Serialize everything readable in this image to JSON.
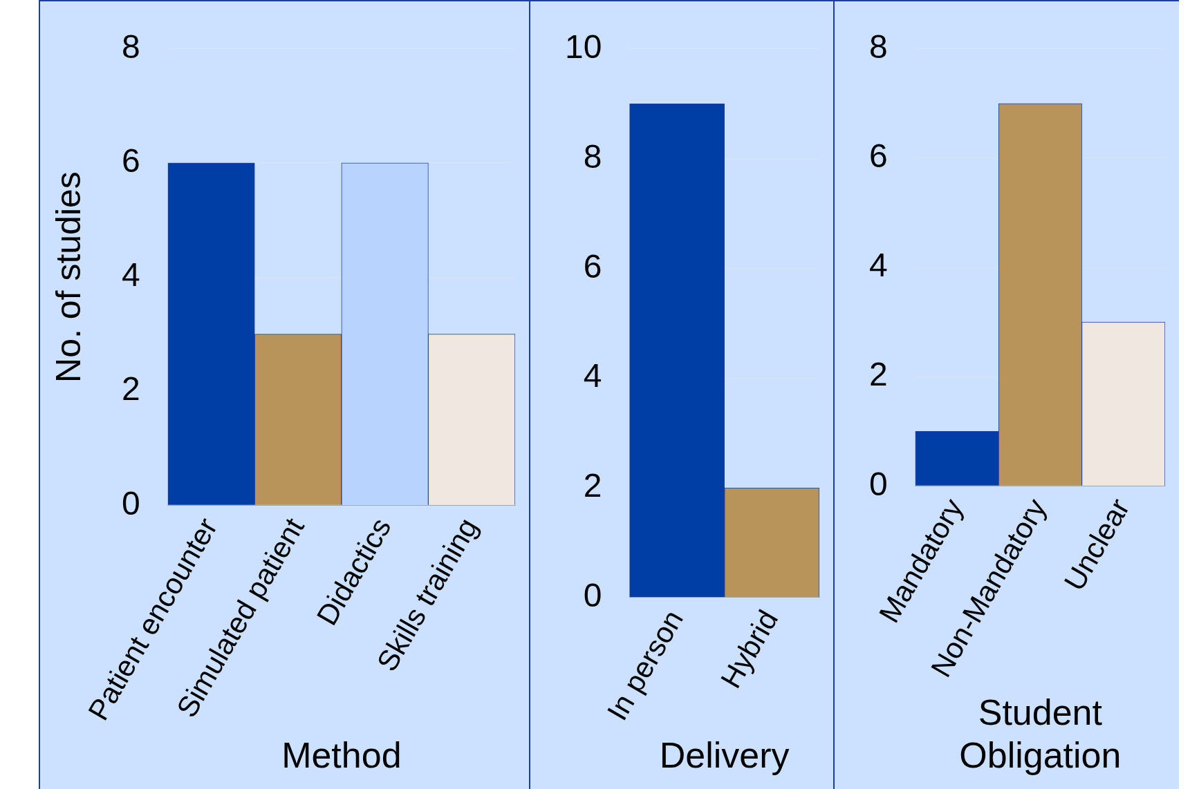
{
  "chart_data": [
    {
      "type": "bar",
      "xlabel": "Method",
      "ylabel": "No. of studies",
      "categories": [
        "Patient encounter",
        "Simulated patient",
        "Didactics",
        "Skills training"
      ],
      "values": [
        6,
        3,
        6,
        3
      ],
      "colors": [
        "#003da5",
        "#b8945a",
        "#b9d3ff",
        "#f0e8e0"
      ],
      "ylim": [
        0,
        8
      ],
      "yticks": [
        0,
        2,
        4,
        6,
        8
      ],
      "grid": "y"
    },
    {
      "type": "bar",
      "xlabel": "Delivery",
      "categories": [
        "In person",
        "Hybrid"
      ],
      "values": [
        9,
        2
      ],
      "colors": [
        "#003da5",
        "#b8945a"
      ],
      "ylim": [
        0,
        10
      ],
      "yticks": [
        0,
        2,
        4,
        6,
        8,
        10
      ],
      "grid": "y"
    },
    {
      "type": "bar",
      "xlabel": "Student Obligation",
      "categories": [
        "Mandatory",
        "Non-Mandatory",
        "Unclear"
      ],
      "values": [
        1,
        7,
        3
      ],
      "colors": [
        "#003da5",
        "#b8945a",
        "#f0e8e0"
      ],
      "ylim": [
        0,
        8
      ],
      "yticks": [
        0,
        2,
        4,
        6,
        8
      ],
      "grid": "y"
    }
  ]
}
